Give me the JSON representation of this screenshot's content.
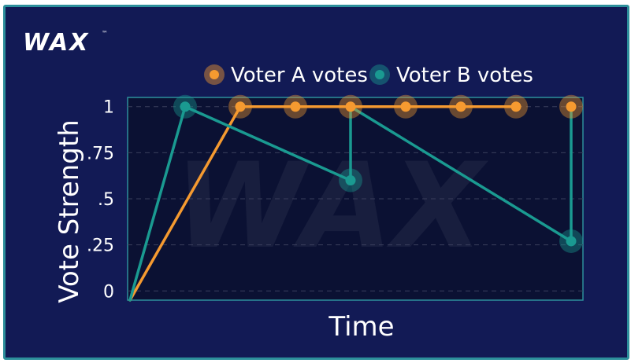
{
  "brand": {
    "logo_text": "WAX",
    "trademark": "™"
  },
  "colors": {
    "background": "#121a55",
    "plot_background": "#0b1133",
    "border": "#2c8f9b",
    "voter_a": "#f59a30",
    "voter_b": "#1a9a91",
    "grid": "#3a3f5c"
  },
  "chart_data": {
    "type": "line",
    "title": "",
    "xlabel": "Time",
    "ylabel": "Vote Strength",
    "ylim": [
      -0.05,
      1.05
    ],
    "xlim": [
      0,
      8.2
    ],
    "yticks": [
      {
        "value": 0,
        "label": "0"
      },
      {
        "value": 0.25,
        "label": ".25"
      },
      {
        "value": 0.5,
        "label": ".5"
      },
      {
        "value": 0.75,
        "label": ".75"
      },
      {
        "value": 1,
        "label": "1"
      }
    ],
    "grid": "horizontal dashed",
    "legend_position": "top-center",
    "series": [
      {
        "name": "Voter A votes",
        "color_key": "voter_a",
        "line": [
          [
            0,
            -0.05
          ],
          [
            2,
            1
          ],
          [
            7,
            1
          ]
        ],
        "votes": [
          [
            2,
            1
          ],
          [
            3,
            1
          ],
          [
            4,
            1
          ],
          [
            5,
            1
          ],
          [
            6,
            1
          ],
          [
            7,
            1
          ],
          [
            8,
            1
          ]
        ]
      },
      {
        "name": "Voter B votes",
        "color_key": "voter_b",
        "line": [
          [
            0,
            -0.05
          ],
          [
            1,
            1
          ],
          [
            4,
            0.6
          ],
          [
            4,
            1
          ],
          [
            8,
            0.27
          ],
          [
            8,
            1
          ]
        ],
        "votes": [
          [
            1,
            1
          ],
          [
            4,
            0.6
          ],
          [
            8,
            0.27
          ]
        ]
      }
    ]
  }
}
